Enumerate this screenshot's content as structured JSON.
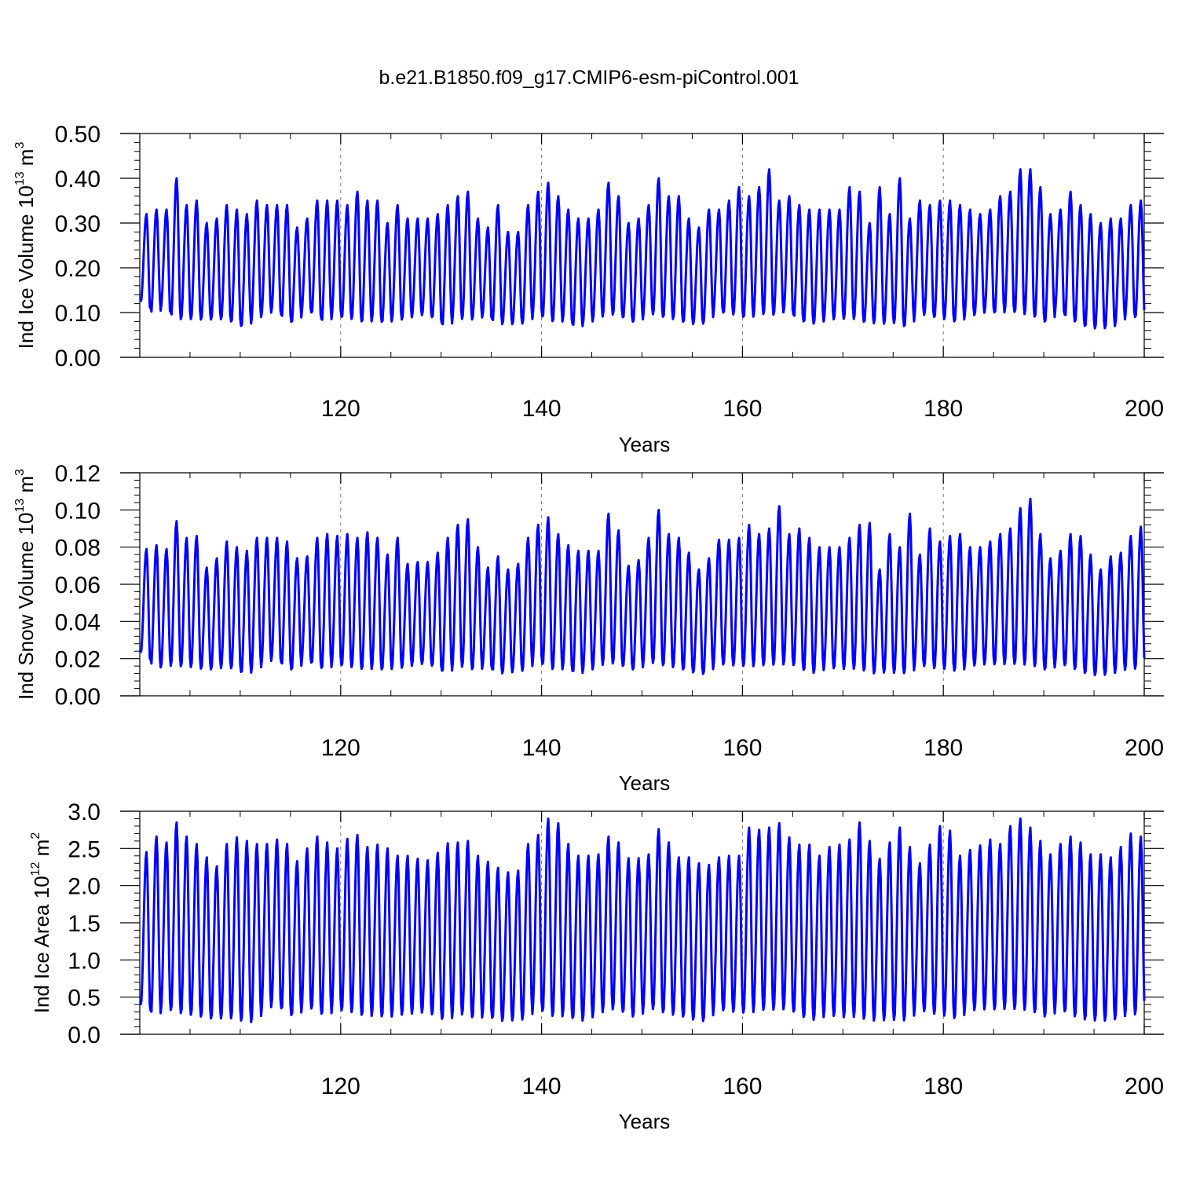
{
  "title": "b.e21.B1850.f09_g17.CMIP6-esm-piControl.001",
  "line_color": "#0000ff",
  "chart_data": [
    {
      "type": "line",
      "title": "b.e21.B1850.f09_g17.CMIP6-esm-piControl.001",
      "xlabel": "Years",
      "ylabel": {
        "text": "Ind Ice Volume 10",
        "exp": "13",
        "unit": " m",
        "unit_exp": "3"
      },
      "xlim": [
        100,
        200
      ],
      "ylim": [
        0,
        0.5
      ],
      "x_ticks": [
        "120",
        "140",
        "160",
        "180",
        "200"
      ],
      "y_ticks": [
        "0.00",
        "0.10",
        "0.20",
        "0.30",
        "0.40",
        "0.50"
      ],
      "y_tick_values": [
        0,
        0.1,
        0.2,
        0.3,
        0.4,
        0.5
      ],
      "grid": "dashed vertical at major x ticks",
      "series": [
        {
          "x_start": 100.083,
          "x_step": 1,
          "peaks": [
            0.32,
            0.33,
            0.33,
            0.4,
            0.34,
            0.35,
            0.3,
            0.31,
            0.34,
            0.33,
            0.32,
            0.35,
            0.34,
            0.34,
            0.34,
            0.29,
            0.31,
            0.35,
            0.35,
            0.35,
            0.34,
            0.37,
            0.35,
            0.35,
            0.3,
            0.34,
            0.31,
            0.31,
            0.31,
            0.32,
            0.34,
            0.36,
            0.37,
            0.31,
            0.29,
            0.34,
            0.28,
            0.28,
            0.34,
            0.37,
            0.39,
            0.36,
            0.33,
            0.31,
            0.31,
            0.33,
            0.39,
            0.36,
            0.3,
            0.31,
            0.34,
            0.4,
            0.36,
            0.36,
            0.31,
            0.29,
            0.33,
            0.33,
            0.35,
            0.38,
            0.36,
            0.38,
            0.42,
            0.35,
            0.36,
            0.34,
            0.33,
            0.33,
            0.33,
            0.33,
            0.38,
            0.37,
            0.3,
            0.38,
            0.32,
            0.4,
            0.31,
            0.35,
            0.34,
            0.35,
            0.35,
            0.34,
            0.33,
            0.32,
            0.33,
            0.36,
            0.37,
            0.42,
            0.42,
            0.38,
            0.32,
            0.33,
            0.37,
            0.34,
            0.32,
            0.3,
            0.31,
            0.31,
            0.34,
            0.35
          ],
          "troughs": [
            0.12,
            0.09,
            0.11,
            0.08,
            0.08,
            0.08,
            0.08,
            0.08,
            0.08,
            0.07,
            0.06,
            0.08,
            0.09,
            0.1,
            0.08,
            0.07,
            0.1,
            0.09,
            0.07,
            0.09,
            0.08,
            0.08,
            0.07,
            0.08,
            0.07,
            0.08,
            0.08,
            0.09,
            0.09,
            0.08,
            0.06,
            0.08,
            0.08,
            0.08,
            0.09,
            0.07,
            0.07,
            0.07,
            0.07,
            0.09,
            0.08,
            0.07,
            0.08,
            0.06,
            0.07,
            0.08,
            0.09,
            0.09,
            0.08,
            0.07,
            0.09,
            0.09,
            0.08,
            0.08,
            0.07,
            0.07,
            0.07,
            0.1,
            0.09,
            0.09,
            0.08,
            0.09,
            0.09,
            0.09,
            0.1,
            0.08,
            0.07,
            0.07,
            0.08,
            0.08,
            0.08,
            0.08,
            0.07,
            0.07,
            0.07,
            0.07,
            0.06,
            0.09,
            0.09,
            0.08,
            0.08,
            0.07,
            0.09,
            0.09,
            0.1,
            0.09,
            0.1,
            0.09,
            0.09,
            0.08,
            0.07,
            0.1,
            0.08,
            0.07,
            0.06,
            0.06,
            0.06,
            0.07,
            0.09,
            0.08
          ]
        }
      ]
    },
    {
      "type": "line",
      "xlabel": "Years",
      "ylabel": {
        "text": "Ind Snow Volume 10",
        "exp": "13",
        "unit": " m",
        "unit_exp": "3"
      },
      "xlim": [
        100,
        200
      ],
      "ylim": [
        0,
        0.12
      ],
      "x_ticks": [
        "120",
        "140",
        "160",
        "180",
        "200"
      ],
      "y_ticks": [
        "0.00",
        "0.02",
        "0.04",
        "0.06",
        "0.08",
        "0.10",
        "0.12"
      ],
      "y_tick_values": [
        0,
        0.02,
        0.04,
        0.06,
        0.08,
        0.1,
        0.12
      ],
      "grid": "dashed vertical at major x ticks",
      "series": [
        {
          "x_start": 100.083,
          "x_step": 1,
          "peaks": [
            0.079,
            0.081,
            0.079,
            0.094,
            0.085,
            0.086,
            0.069,
            0.074,
            0.083,
            0.08,
            0.078,
            0.085,
            0.085,
            0.085,
            0.083,
            0.074,
            0.075,
            0.085,
            0.087,
            0.086,
            0.087,
            0.085,
            0.088,
            0.085,
            0.076,
            0.085,
            0.071,
            0.072,
            0.072,
            0.077,
            0.085,
            0.092,
            0.095,
            0.08,
            0.069,
            0.075,
            0.068,
            0.071,
            0.085,
            0.092,
            0.096,
            0.087,
            0.081,
            0.078,
            0.078,
            0.078,
            0.098,
            0.089,
            0.07,
            0.073,
            0.085,
            0.1,
            0.087,
            0.085,
            0.077,
            0.068,
            0.074,
            0.084,
            0.084,
            0.085,
            0.092,
            0.087,
            0.09,
            0.102,
            0.087,
            0.09,
            0.085,
            0.08,
            0.08,
            0.08,
            0.085,
            0.092,
            0.093,
            0.068,
            0.087,
            0.08,
            0.098,
            0.076,
            0.09,
            0.083,
            0.086,
            0.087,
            0.08,
            0.08,
            0.083,
            0.087,
            0.09,
            0.101,
            0.106,
            0.087,
            0.074,
            0.078,
            0.087,
            0.086,
            0.076,
            0.068,
            0.075,
            0.077,
            0.086,
            0.091
          ],
          "troughs": [
            0.022,
            0.014,
            0.014,
            0.015,
            0.014,
            0.014,
            0.013,
            0.013,
            0.014,
            0.013,
            0.01,
            0.012,
            0.016,
            0.019,
            0.014,
            0.012,
            0.018,
            0.015,
            0.012,
            0.016,
            0.014,
            0.014,
            0.012,
            0.014,
            0.012,
            0.014,
            0.014,
            0.016,
            0.016,
            0.014,
            0.01,
            0.014,
            0.014,
            0.012,
            0.015,
            0.011,
            0.011,
            0.012,
            0.012,
            0.017,
            0.014,
            0.012,
            0.014,
            0.01,
            0.012,
            0.014,
            0.016,
            0.016,
            0.014,
            0.012,
            0.016,
            0.016,
            0.014,
            0.014,
            0.012,
            0.011,
            0.01,
            0.016,
            0.015,
            0.015,
            0.014,
            0.015,
            0.015,
            0.015,
            0.016,
            0.014,
            0.011,
            0.011,
            0.014,
            0.013,
            0.013,
            0.013,
            0.011,
            0.011,
            0.011,
            0.011,
            0.01,
            0.015,
            0.014,
            0.013,
            0.013,
            0.011,
            0.015,
            0.015,
            0.016,
            0.015,
            0.016,
            0.015,
            0.015,
            0.014,
            0.012,
            0.016,
            0.014,
            0.012,
            0.01,
            0.01,
            0.01,
            0.012,
            0.013,
            0.013
          ]
        }
      ]
    },
    {
      "type": "line",
      "xlabel": "Years",
      "ylabel": {
        "text": "Ind Ice Area 10",
        "exp": "12",
        "unit": " m",
        "unit_exp": "2"
      },
      "xlim": [
        100,
        200
      ],
      "ylim": [
        0,
        3.0
      ],
      "x_ticks": [
        "120",
        "140",
        "160",
        "180",
        "200"
      ],
      "y_ticks": [
        "0.0",
        "0.5",
        "1.0",
        "1.5",
        "2.0",
        "2.5",
        "3.0"
      ],
      "y_tick_values": [
        0,
        0.5,
        1.0,
        1.5,
        2.0,
        2.5,
        3.0
      ],
      "grid": "dashed vertical at major x ticks",
      "series": [
        {
          "x_start": 100.083,
          "x_step": 1,
          "peaks": [
            2.45,
            2.66,
            2.58,
            2.85,
            2.66,
            2.56,
            2.38,
            2.26,
            2.56,
            2.65,
            2.6,
            2.56,
            2.56,
            2.62,
            2.56,
            2.33,
            2.5,
            2.66,
            2.58,
            2.5,
            2.63,
            2.68,
            2.52,
            2.55,
            2.5,
            2.4,
            2.4,
            2.36,
            2.34,
            2.44,
            2.57,
            2.58,
            2.6,
            2.4,
            2.32,
            2.24,
            2.18,
            2.2,
            2.56,
            2.68,
            2.9,
            2.84,
            2.56,
            2.4,
            2.4,
            2.42,
            2.66,
            2.58,
            2.37,
            2.37,
            2.42,
            2.76,
            2.58,
            2.38,
            2.38,
            2.3,
            2.28,
            2.38,
            2.4,
            2.4,
            2.78,
            2.75,
            2.78,
            2.84,
            2.65,
            2.55,
            2.55,
            2.4,
            2.52,
            2.55,
            2.62,
            2.85,
            2.6,
            2.36,
            2.58,
            2.78,
            2.52,
            2.3,
            2.55,
            2.8,
            2.74,
            2.4,
            2.48,
            2.54,
            2.62,
            2.56,
            2.8,
            2.9,
            2.78,
            2.6,
            2.42,
            2.56,
            2.66,
            2.58,
            2.42,
            2.42,
            2.38,
            2.52,
            2.7,
            2.66
          ],
          "troughs": [
            0.35,
            0.18,
            0.3,
            0.25,
            0.22,
            0.21,
            0.18,
            0.16,
            0.17,
            0.16,
            0.11,
            0.12,
            0.28,
            0.36,
            0.25,
            0.18,
            0.32,
            0.28,
            0.18,
            0.3,
            0.25,
            0.25,
            0.18,
            0.22,
            0.17,
            0.22,
            0.22,
            0.25,
            0.25,
            0.2,
            0.12,
            0.22,
            0.22,
            0.15,
            0.22,
            0.14,
            0.14,
            0.15,
            0.15,
            0.3,
            0.22,
            0.17,
            0.22,
            0.13,
            0.15,
            0.22,
            0.28,
            0.3,
            0.22,
            0.17,
            0.3,
            0.28,
            0.22,
            0.22,
            0.17,
            0.14,
            0.13,
            0.3,
            0.26,
            0.26,
            0.22,
            0.28,
            0.28,
            0.28,
            0.3,
            0.22,
            0.15,
            0.15,
            0.22,
            0.18,
            0.18,
            0.18,
            0.14,
            0.14,
            0.14,
            0.14,
            0.14,
            0.28,
            0.25,
            0.2,
            0.2,
            0.15,
            0.28,
            0.28,
            0.3,
            0.28,
            0.3,
            0.28,
            0.28,
            0.22,
            0.17,
            0.3,
            0.22,
            0.17,
            0.14,
            0.14,
            0.14,
            0.17,
            0.22,
            0.22
          ]
        }
      ]
    }
  ]
}
